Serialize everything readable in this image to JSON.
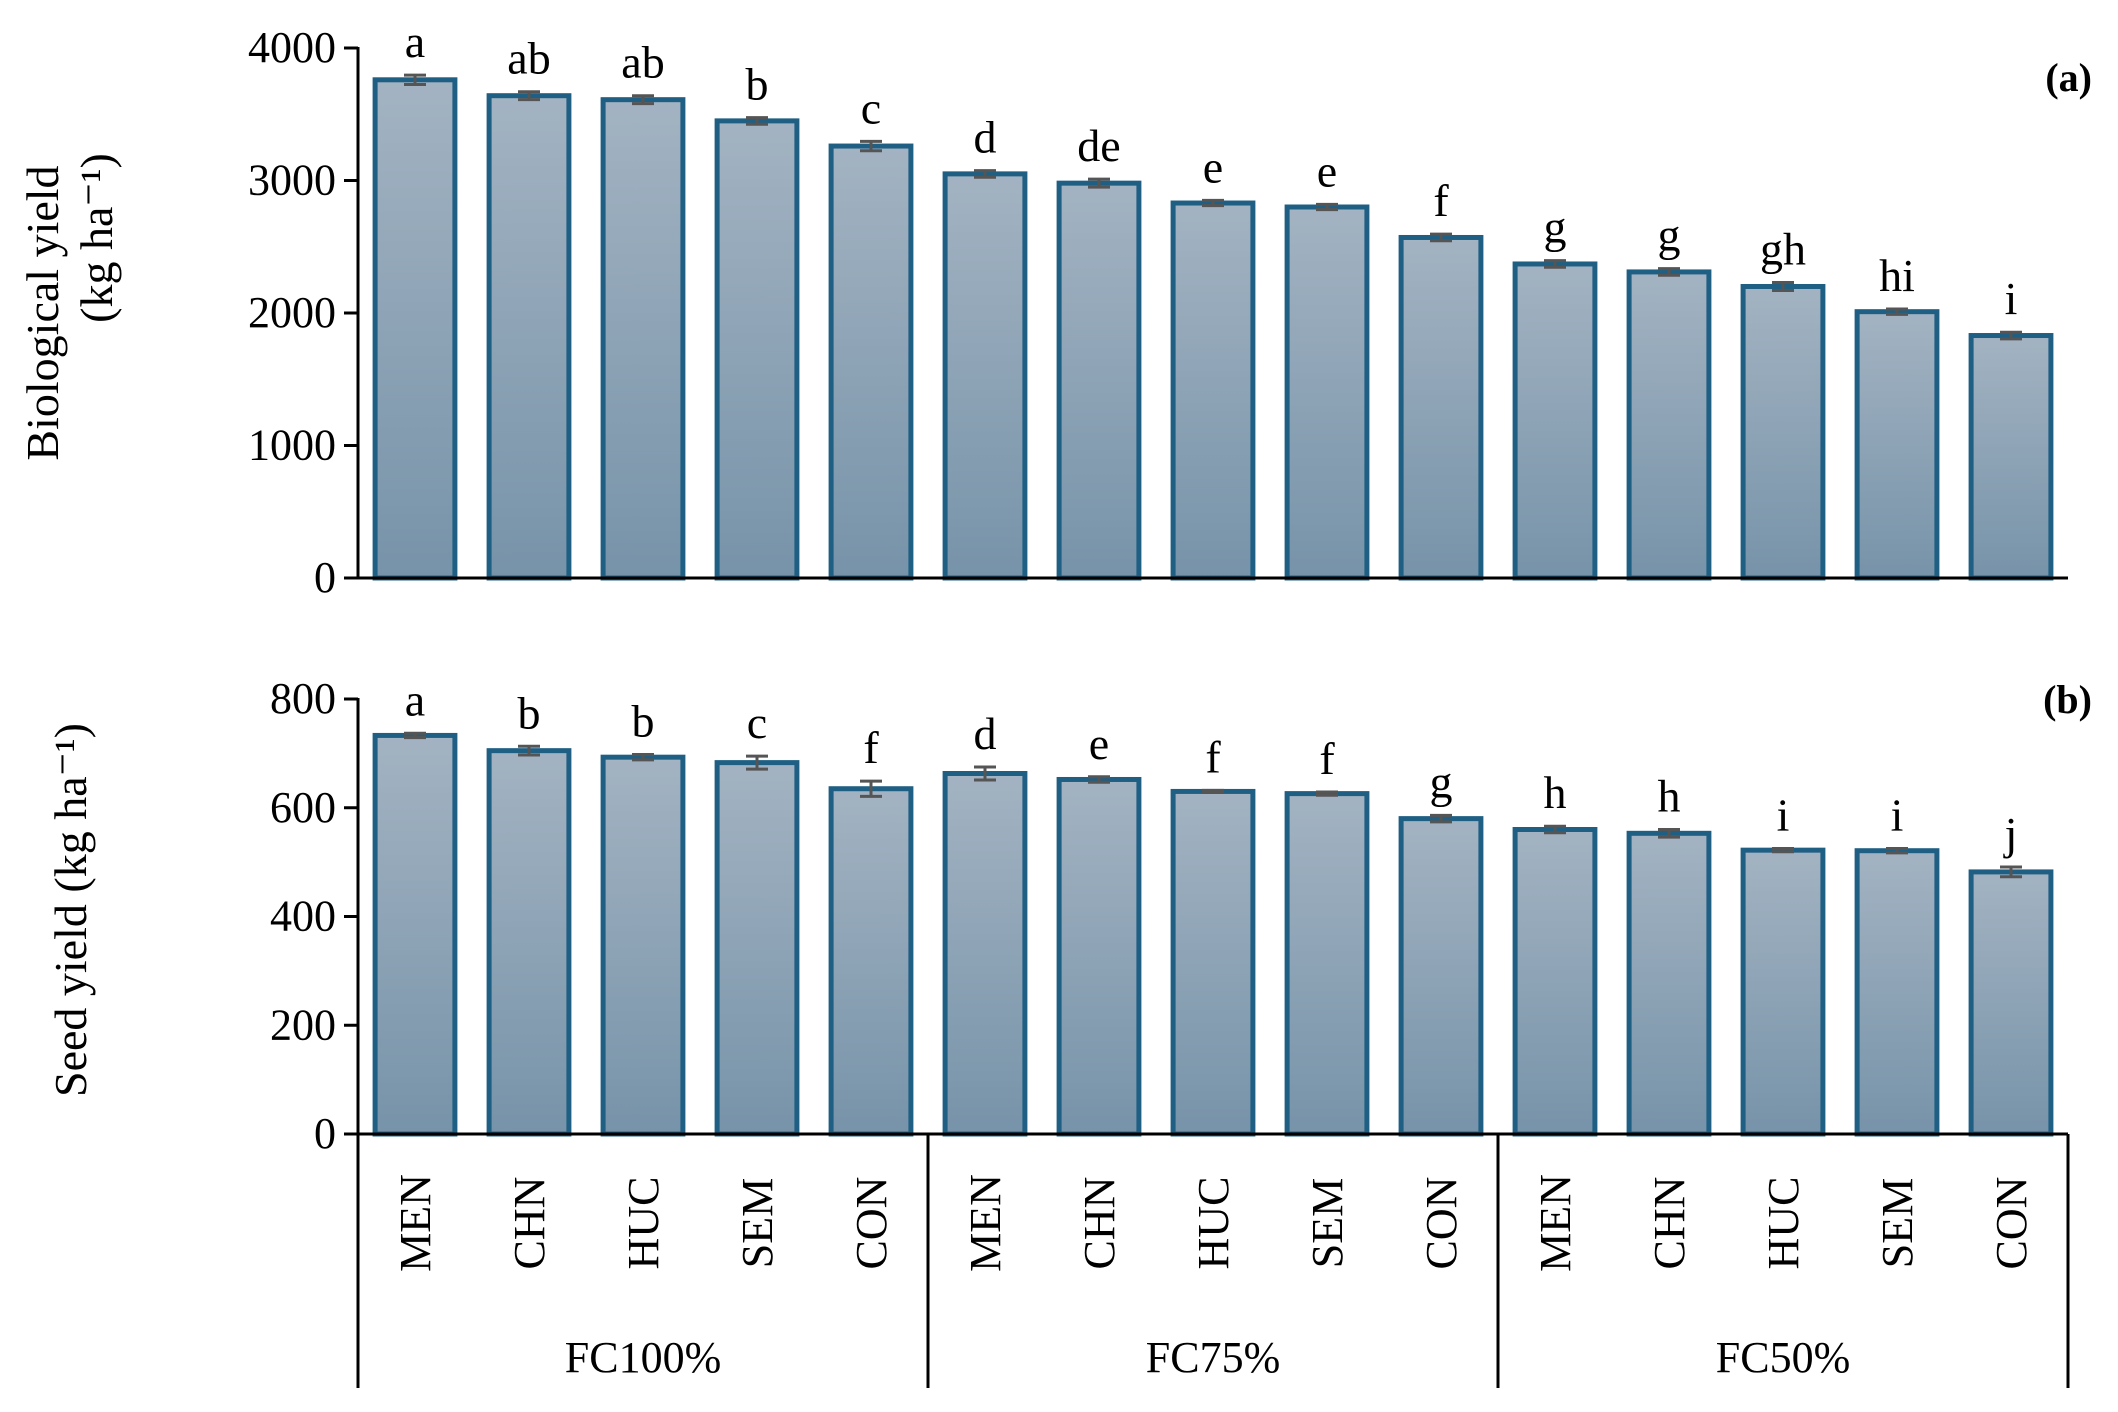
{
  "chart_data": [
    {
      "type": "bar",
      "panel": "(a)",
      "ylabel_line1": "Biological yield",
      "ylabel_line2": "(kg ha⁻¹)",
      "ylim": [
        0,
        4000
      ],
      "yticks": [
        "0",
        "1000",
        "2000",
        "3000",
        "4000"
      ],
      "ytick_values": [
        0,
        1000,
        2000,
        3000,
        4000
      ],
      "bar_color": "#8fa6b9",
      "edge_color": "#1f5f84",
      "categories": [
        "MEN",
        "CHN",
        "HUC",
        "SEM",
        "CON",
        "MEN",
        "CHN",
        "HUC",
        "SEM",
        "CON",
        "MEN",
        "CHN",
        "HUC",
        "SEM",
        "CON"
      ],
      "values": [
        3760,
        3640,
        3610,
        3450,
        3260,
        3050,
        2980,
        2830,
        2800,
        2570,
        2370,
        2310,
        2200,
        2010,
        1830
      ],
      "errors": [
        35,
        30,
        30,
        25,
        35,
        25,
        30,
        20,
        20,
        25,
        25,
        25,
        30,
        20,
        25
      ],
      "letters": [
        "a",
        "ab",
        "ab",
        "b",
        "c",
        "d",
        "de",
        "e",
        "e",
        "f",
        "g",
        "g",
        "gh",
        "hi",
        "i"
      ]
    },
    {
      "type": "bar",
      "panel": "(b)",
      "ylabel": "Seed yield (kg ha⁻¹)",
      "ylim": [
        0,
        800
      ],
      "yticks": [
        "0",
        "200",
        "400",
        "600",
        "800"
      ],
      "ytick_values": [
        0,
        200,
        400,
        600,
        800
      ],
      "bar_color": "#8fa6b9",
      "edge_color": "#1f5f84",
      "categories": [
        "MEN",
        "CHN",
        "HUC",
        "SEM",
        "CON",
        "MEN",
        "CHN",
        "HUC",
        "SEM",
        "CON",
        "MEN",
        "CHN",
        "HUC",
        "SEM",
        "CON"
      ],
      "values": [
        733,
        705,
        693,
        683,
        635,
        663,
        652,
        630,
        626,
        580,
        560,
        553,
        522,
        521,
        482
      ],
      "errors": [
        4,
        8,
        5,
        12,
        14,
        12,
        5,
        2,
        3,
        6,
        6,
        7,
        3,
        4,
        9
      ],
      "letters": [
        "a",
        "b",
        "b",
        "c",
        "f",
        "d",
        "e",
        "f",
        "f",
        "g",
        "h",
        "h",
        "i",
        "i",
        "j"
      ]
    }
  ],
  "groups": [
    "FC100%",
    "FC75%",
    "FC50%"
  ]
}
